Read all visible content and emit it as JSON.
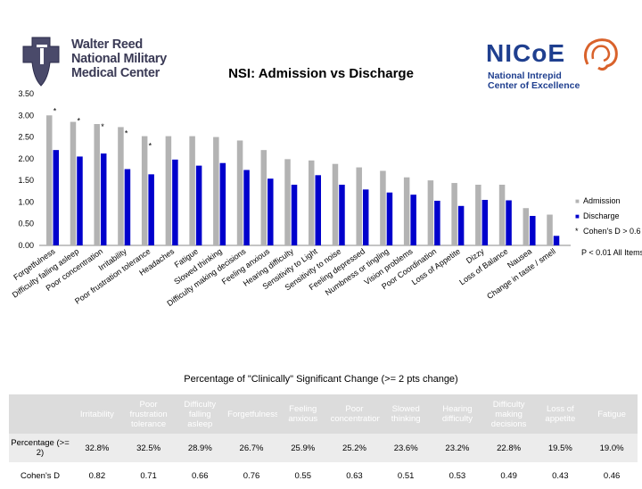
{
  "header": {
    "left_logo_text": [
      "Walter Reed",
      "National Military",
      "Medical Center"
    ],
    "right_logo_text": "NICoE",
    "right_logo_subtext": [
      "National Intrepid",
      "Center of Excellence"
    ]
  },
  "chart_data": {
    "type": "bar",
    "title": "NSI: Admission vs Discharge",
    "ylim": [
      0,
      3.5
    ],
    "yticks": [
      "0.00",
      "0.50",
      "1.00",
      "1.50",
      "2.00",
      "2.50",
      "3.00",
      "3.50"
    ],
    "categories": [
      "Forgetfulness",
      "Difficulty falling asleep",
      "Poor concentration",
      "Irritability",
      "Poor frustration tolerance",
      "Headaches",
      "Fatigue",
      "Slowed thinking",
      "Difficulty making decisions",
      "Feeling anxious",
      "Hearing difficulty",
      "Sensitivity to Light",
      "Sensitivity to noise",
      "Feeling depressed",
      "Numbness or tingling",
      "Vision problems",
      "Poor Coordination",
      "Loss of Appetite",
      "Dizzy",
      "Loss of Balance",
      "Nausea",
      "Change in taste / smell"
    ],
    "series": [
      {
        "name": "Admission",
        "color": "#b3b3b3",
        "values": [
          3.0,
          2.85,
          2.8,
          2.73,
          2.52,
          2.52,
          2.52,
          2.5,
          2.42,
          2.2,
          1.99,
          1.96,
          1.88,
          1.8,
          1.72,
          1.57,
          1.5,
          1.44,
          1.4,
          1.4,
          0.86,
          0.71
        ]
      },
      {
        "name": "Discharge",
        "color": "#0000cc",
        "values": [
          2.2,
          2.05,
          2.12,
          1.76,
          1.64,
          1.98,
          1.84,
          1.9,
          1.74,
          1.54,
          1.4,
          1.62,
          1.4,
          1.29,
          1.22,
          1.17,
          1.03,
          0.91,
          1.05,
          1.04,
          0.68,
          0.22
        ]
      }
    ],
    "significance_marker": "*",
    "significant_categories": [
      "Forgetfulness",
      "Difficulty falling asleep",
      "Poor concentration",
      "Irritability",
      "Poor frustration tolerance"
    ],
    "legend": [
      {
        "label": "Admission",
        "marker": "■"
      },
      {
        "label": "Discharge",
        "marker": "■"
      },
      {
        "label": "Cohen's D > 0.6",
        "marker": "*"
      }
    ],
    "note": "P < 0.01 All Items"
  },
  "table": {
    "caption": "Percentage of \"Clinically\" Significant Change (>= 2 pts change)",
    "columns": [
      "Irritability",
      "Poor frustration tolerance",
      "Difficulty falling asleep",
      "Forgetfulness",
      "Feeling anxious",
      "Poor concentration",
      "Slowed thinking",
      "Hearing difficulty",
      "Difficulty making decisions",
      "Loss of appetite",
      "Fatigue"
    ],
    "rows": [
      {
        "label": "Percentage (>= 2)",
        "values": [
          "32.8%",
          "32.5%",
          "28.9%",
          "26.7%",
          "25.9%",
          "25.2%",
          "23.6%",
          "23.2%",
          "22.8%",
          "19.5%",
          "19.0%"
        ]
      },
      {
        "label": "Cohen's D",
        "values": [
          "0.82",
          "0.71",
          "0.66",
          "0.76",
          "0.55",
          "0.63",
          "0.51",
          "0.53",
          "0.49",
          "0.43",
          "0.46"
        ]
      }
    ]
  }
}
